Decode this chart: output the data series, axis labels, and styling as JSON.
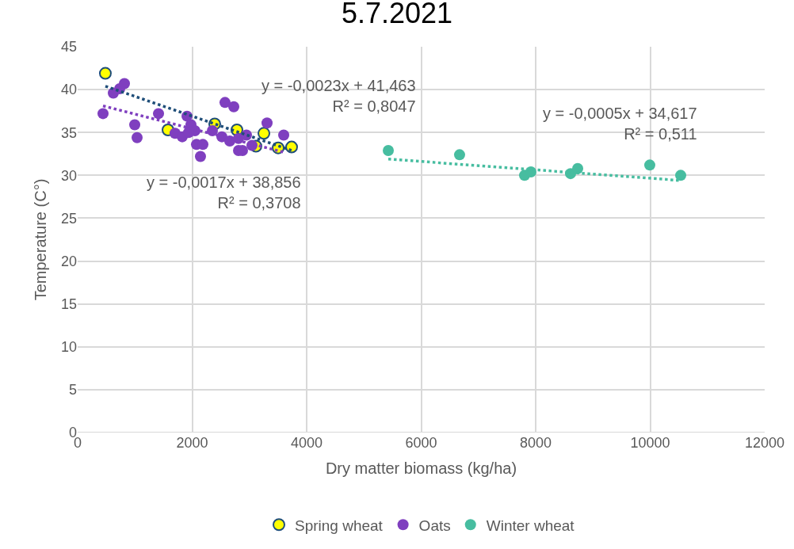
{
  "chart_data": {
    "type": "scatter",
    "title": "5.7.2021",
    "xlabel": "Dry matter biomass (kg/ha)",
    "ylabel": "Temperature (C°)",
    "xlim": [
      0,
      12000
    ],
    "xticks": [
      0,
      2000,
      4000,
      6000,
      8000,
      10000,
      12000
    ],
    "ylim": [
      0,
      45
    ],
    "yticks": [
      0,
      5,
      10,
      15,
      20,
      25,
      30,
      35,
      40,
      45
    ],
    "grid": true,
    "legend": "bottom",
    "marker": "circle",
    "series": [
      {
        "name": "Spring wheat",
        "color": "#ffff00",
        "x": [
          484,
          1578,
          2394,
          2782,
          3253,
          3114,
          3502,
          3737
        ],
        "values": [
          41.9,
          35.3,
          36.0,
          35.3,
          34.9,
          33.4,
          33.2,
          33.3
        ]
      },
      {
        "name": "Oats",
        "color": "#7f3fbf",
        "x": [
          443,
          623,
          817,
          734,
          997,
          1038,
          1412,
          1702,
          1827,
          1910,
          1979,
          2048,
          1938,
          2076,
          2187,
          2145,
          2353,
          2574,
          2727,
          2519,
          2657,
          2810,
          2810,
          2879,
          2948,
          3045,
          3308,
          3599
        ],
        "values": [
          37.2,
          39.6,
          40.7,
          40.1,
          35.9,
          34.4,
          37.2,
          34.9,
          34.5,
          36.9,
          35.9,
          35.2,
          35.0,
          33.6,
          33.6,
          32.2,
          35.2,
          38.5,
          38.0,
          34.5,
          34.0,
          34.3,
          32.9,
          32.9,
          34.7,
          33.5,
          36.1,
          34.7
        ]
      },
      {
        "name": "Winter wheat",
        "color": "#47bda0",
        "x": [
          5426,
          6671,
          7806,
          7917,
          8609,
          8734,
          9993,
          10533
        ],
        "values": [
          32.9,
          32.4,
          30.0,
          30.4,
          30.2,
          30.8,
          31.2,
          30.0
        ]
      },
      {
        "type": "line",
        "color": "#1f4e79",
        "line_style": "dotted",
        "marker": "none",
        "x": [
          484,
          3737
        ],
        "values": [
          40.4,
          32.9
        ]
      },
      {
        "type": "line",
        "color": "#7f3fbf",
        "line_style": "dotted",
        "marker": "none",
        "x": [
          443,
          3599
        ],
        "values": [
          38.1,
          32.7
        ]
      },
      {
        "type": "line",
        "color": "#47bda0",
        "line_style": "dotted",
        "marker": "none",
        "x": [
          5426,
          10533
        ],
        "values": [
          31.9,
          29.4
        ]
      }
    ],
    "annotations": [
      "y = -0,0023x + 41,463\nR² = 0,8047",
      "y = -0,0017x + 38,856\nR² = 0,3708",
      "y = -0,0005x + 34,617\nR² = 0,511"
    ]
  }
}
